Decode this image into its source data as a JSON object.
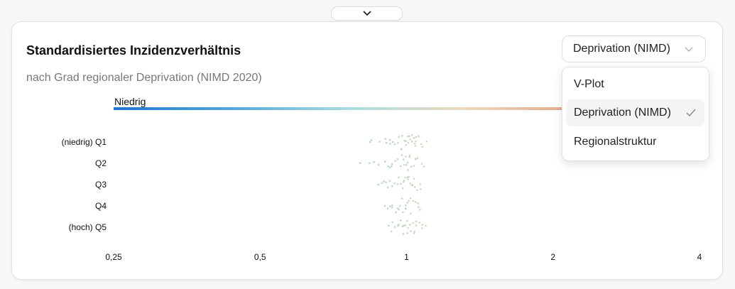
{
  "card": {
    "title": "Standardisiertes Inzidenzverhältnis",
    "subtitle": "nach Grad regionaler Deprivation (NIMD 2020)"
  },
  "select": {
    "value": "Deprivation (NIMD)",
    "options": [
      "V-Plot",
      "Deprivation (NIMD)",
      "Regionalstruktur"
    ],
    "selected_index": 1
  },
  "icons": {
    "collapse": "chevron-down-icon",
    "select": "chevron-down-icon",
    "selected": "check-icon"
  },
  "chart_data": {
    "type": "scatter",
    "legend_low_label": "Niedrig",
    "gradient_colors": [
      "#1f77d0",
      "#4ea6e0",
      "#a8dde0",
      "#ecd9bd",
      "#e3a586",
      "#d47a62"
    ],
    "x_scale": "log2",
    "xlim": [
      0.25,
      4
    ],
    "x_ticks": [
      "0,25",
      "0,5",
      "1",
      "2",
      "4"
    ],
    "x_tick_values": [
      0.25,
      0.5,
      1,
      2,
      4
    ],
    "categories": [
      "(niedrig) Q1",
      "Q2",
      "Q3",
      "Q4",
      "(hoch) Q5"
    ],
    "series": [
      {
        "values": [
          0.84,
          0.85,
          0.88,
          0.9,
          0.91,
          0.92,
          0.93,
          0.94,
          0.95,
          0.96,
          0.97,
          0.97,
          0.98,
          0.98,
          0.99,
          1.0,
          1.0,
          1.0,
          1.01,
          1.01,
          1.02,
          1.02,
          1.03,
          1.03,
          1.04,
          1.04,
          1.05,
          1.05,
          1.06,
          1.07,
          1.08,
          1.1
        ]
      },
      {
        "values": [
          0.8,
          0.84,
          0.86,
          0.88,
          0.9,
          0.91,
          0.92,
          0.93,
          0.94,
          0.95,
          0.96,
          0.97,
          0.98,
          0.98,
          0.99,
          0.99,
          1.0,
          1.0,
          1.01,
          1.01,
          1.02,
          1.02,
          1.03,
          1.04,
          1.05,
          1.06,
          1.07,
          1.09
        ]
      },
      {
        "values": [
          0.88,
          0.89,
          0.9,
          0.91,
          0.92,
          0.93,
          0.94,
          0.95,
          0.96,
          0.96,
          0.97,
          0.98,
          0.98,
          0.99,
          1.0,
          1.0,
          1.01,
          1.01,
          1.02,
          1.02,
          1.03,
          1.03,
          1.04,
          1.05,
          1.06,
          1.07
        ]
      },
      {
        "values": [
          0.9,
          0.91,
          0.92,
          0.93,
          0.94,
          0.95,
          0.96,
          0.96,
          0.97,
          0.98,
          0.98,
          0.99,
          1.0,
          1.0,
          1.01,
          1.01,
          1.02,
          1.02,
          1.03,
          1.04,
          1.05,
          1.06,
          1.07
        ]
      },
      {
        "values": [
          0.92,
          0.93,
          0.94,
          0.95,
          0.96,
          0.97,
          0.97,
          0.98,
          0.99,
          0.99,
          1.0,
          1.0,
          1.01,
          1.01,
          1.02,
          1.02,
          1.03,
          1.03,
          1.04,
          1.04,
          1.05,
          1.06,
          1.07,
          1.08,
          1.1
        ]
      }
    ]
  }
}
